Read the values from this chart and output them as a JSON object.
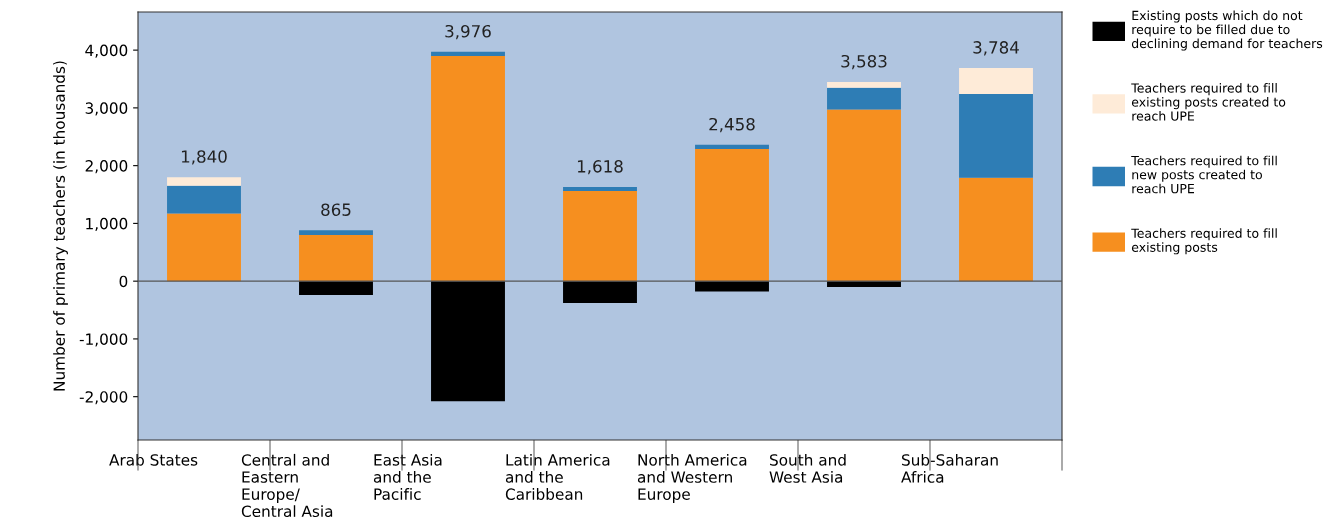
{
  "chart_data": {
    "type": "bar",
    "stacked": true,
    "ylabel": "Number of primary teachers (in thousands)",
    "categories": [
      "Arab States",
      "Central and\nEastern\nEurope/\nCentral Asia",
      "East Asia\nand the\nPacific",
      "Latin America\nand the\nCaribbean",
      "North America\nand Western\nEurope",
      "South and\nWest Asia",
      "Sub-Saharan\nAfrica"
    ],
    "series": [
      {
        "name": "Teachers required to fill\nexisting posts",
        "color": "#f68f1f",
        "values": [
          1170,
          800,
          3900,
          1560,
          2290,
          2970,
          1790
        ]
      },
      {
        "name": "Teachers required to fill\nnew posts created to\nreach UPE",
        "color": "#2e7db5",
        "values": [
          480,
          80,
          70,
          70,
          70,
          380,
          1450
        ]
      },
      {
        "name": "Teachers required to fill\nexisting posts created to\nreach UPE",
        "color": "#feebd8",
        "values": [
          150,
          null,
          null,
          null,
          null,
          100,
          450
        ]
      },
      {
        "name": "Existing posts which do not\nrequire to be filled due to\ndeclining demand for teachers",
        "color": "#000000",
        "values": [
          null,
          -240,
          -2080,
          -380,
          -180,
          -100,
          null
        ]
      }
    ],
    "annotations": [
      "1,840",
      "865",
      "3,976",
      "1,618",
      "2,458",
      "3,583",
      "3,784"
    ],
    "ylim": [
      -2750,
      4660
    ],
    "yticks": [
      {
        "value": -2000,
        "label": "-2,000"
      },
      {
        "value": -1000,
        "label": "-1,000"
      },
      0,
      {
        "value": 1000,
        "label": "1,000"
      },
      {
        "value": 2000,
        "label": "2,000"
      },
      {
        "value": 3000,
        "label": "3,000"
      },
      {
        "value": 4000,
        "label": "4,000"
      }
    ],
    "ref_lines": [
      {
        "axis": "y",
        "value": 0,
        "label": null,
        "color": "#555555"
      }
    ],
    "legend": "right",
    "grid": false
  }
}
